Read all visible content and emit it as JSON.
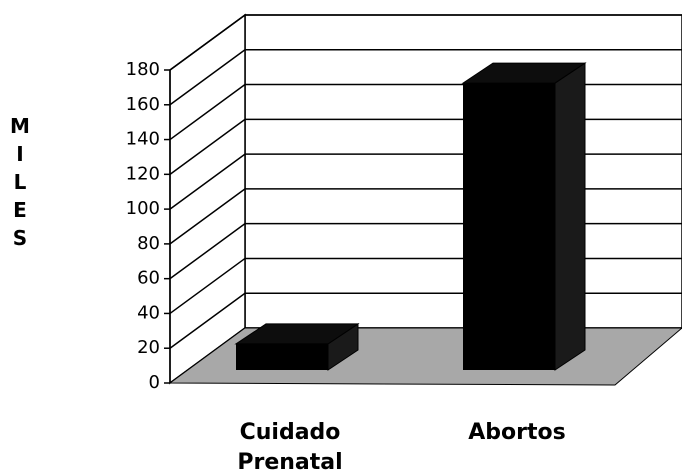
{
  "chart_data": {
    "type": "bar3d",
    "y_label": "MILES",
    "categories": [
      "Cuidado Prenatal",
      "Abortos"
    ],
    "values": [
      15,
      165
    ],
    "color": "#000000",
    "ylim": [
      0,
      180
    ],
    "yticks": [
      0,
      20,
      40,
      60,
      80,
      100,
      120,
      140,
      160,
      180
    ],
    "grid": true
  }
}
